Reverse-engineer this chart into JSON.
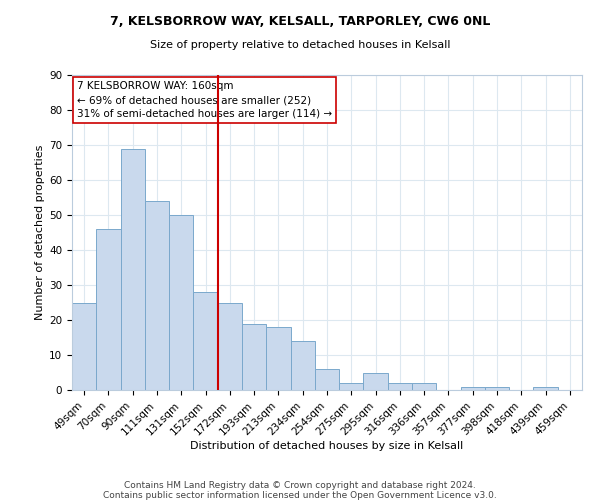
{
  "title1": "7, KELSBORROW WAY, KELSALL, TARPORLEY, CW6 0NL",
  "title2": "Size of property relative to detached houses in Kelsall",
  "xlabel": "Distribution of detached houses by size in Kelsall",
  "ylabel": "Number of detached properties",
  "categories": [
    "49sqm",
    "70sqm",
    "90sqm",
    "111sqm",
    "131sqm",
    "152sqm",
    "172sqm",
    "193sqm",
    "213sqm",
    "234sqm",
    "254sqm",
    "275sqm",
    "295sqm",
    "316sqm",
    "336sqm",
    "357sqm",
    "377sqm",
    "398sqm",
    "418sqm",
    "439sqm",
    "459sqm"
  ],
  "values": [
    25,
    46,
    69,
    54,
    50,
    28,
    25,
    19,
    18,
    14,
    6,
    2,
    5,
    2,
    2,
    0,
    1,
    1,
    0,
    1,
    0
  ],
  "bar_color": "#c9d9ed",
  "bar_edge_color": "#7aa8cc",
  "vline_x": 6.0,
  "vline_color": "#cc0000",
  "annotation_line1": "7 KELSBORROW WAY: 160sqm",
  "annotation_line2": "← 69% of detached houses are smaller (252)",
  "annotation_line3": "31% of semi-detached houses are larger (114) →",
  "annotation_box_color": "#ffffff",
  "annotation_box_edge": "#cc0000",
  "ylim": [
    0,
    90
  ],
  "yticks": [
    0,
    10,
    20,
    30,
    40,
    50,
    60,
    70,
    80,
    90
  ],
  "footer1": "Contains HM Land Registry data © Crown copyright and database right 2024.",
  "footer2": "Contains public sector information licensed under the Open Government Licence v3.0.",
  "background_color": "#ffffff",
  "grid_color": "#dde8f0",
  "title1_fontsize": 9,
  "title2_fontsize": 8,
  "annotation_fontsize": 7.5,
  "xlabel_fontsize": 8,
  "ylabel_fontsize": 8,
  "tick_fontsize": 7.5,
  "footer_fontsize": 6.5
}
